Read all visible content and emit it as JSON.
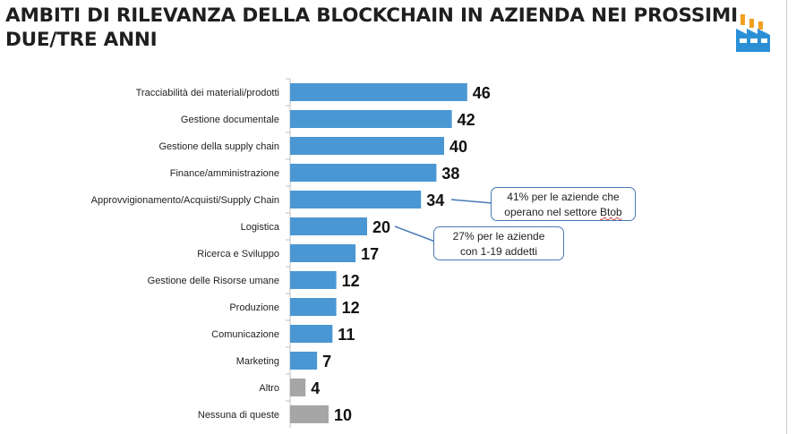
{
  "title_lines": [
    "AMBITI DI RILEVANZA DELLA BLOCKCHAIN IN AZIENDA NEI PROSSIMI",
    "DUE/TRE ANNI"
  ],
  "icon": "factory-icon",
  "colors": {
    "primary_bar": "#4a97d3",
    "secondary_bar": "#a6a6a6",
    "callout_border": "#4a7ab5"
  },
  "chart_data": {
    "type": "bar",
    "orientation": "horizontal",
    "categories": [
      "Tracciabilità dei materiali/prodotti",
      "Gestione documentale",
      "Gestione della supply chain",
      "Finance/amministrazione",
      "Approvvigionamento/Acquisti/Supply Chain",
      "Logistica",
      "Ricerca e Sviluppo",
      "Gestione delle Risorse umane",
      "Produzione",
      "Comunicazione",
      "Marketing",
      "Altro",
      "Nessuna di queste"
    ],
    "values": [
      46,
      42,
      40,
      38,
      34,
      20,
      17,
      12,
      12,
      11,
      7,
      4,
      10
    ],
    "bar_colors": [
      "primary",
      "primary",
      "primary",
      "primary",
      "primary",
      "primary",
      "primary",
      "primary",
      "primary",
      "primary",
      "primary",
      "secondary",
      "secondary"
    ],
    "data_labels": true,
    "grid": false,
    "annotations": [
      {
        "category": "Approvvigionamento/Acquisti/Supply Chain",
        "lines": [
          "41% per le aziende che",
          "operano nel settore Btob"
        ]
      },
      {
        "category": "Logistica",
        "lines": [
          "27% per le aziende",
          "con 1-19 addetti"
        ]
      }
    ]
  }
}
